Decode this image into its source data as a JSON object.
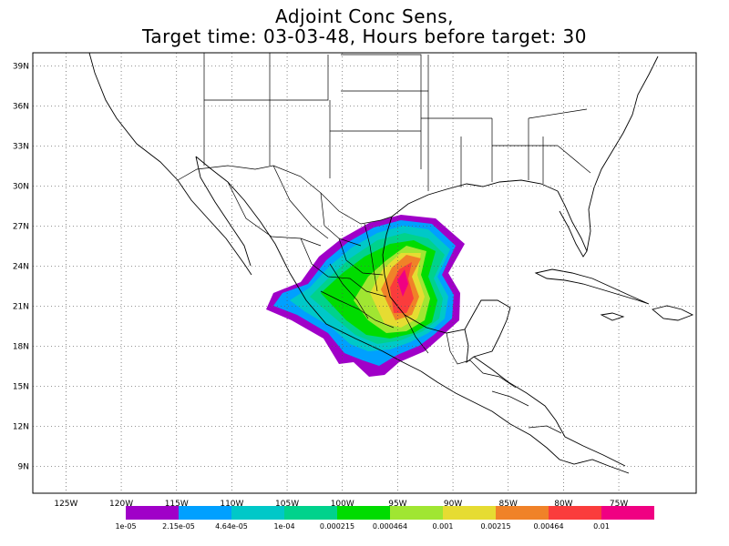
{
  "title": {
    "line1": "Adjoint Conc Sens,",
    "line2": "Target time: 03-03-48, Hours before target: 30"
  },
  "map": {
    "lon_range": [
      -128,
      -68
    ],
    "lat_range": [
      7,
      40
    ],
    "lat_ticks": [
      {
        "value": 39,
        "label": "39N"
      },
      {
        "value": 36,
        "label": "36N"
      },
      {
        "value": 33,
        "label": "33N"
      },
      {
        "value": 30,
        "label": "30N"
      },
      {
        "value": 27,
        "label": "27N"
      },
      {
        "value": 24,
        "label": "24N"
      },
      {
        "value": 21,
        "label": "21N"
      },
      {
        "value": 18,
        "label": "18N"
      },
      {
        "value": 15,
        "label": "15N"
      },
      {
        "value": 12,
        "label": "12N"
      },
      {
        "value": 9,
        "label": "9N"
      }
    ],
    "lon_ticks": [
      {
        "value": -125,
        "label": "125W"
      },
      {
        "value": -120,
        "label": "120W"
      },
      {
        "value": -115,
        "label": "115W"
      },
      {
        "value": -110,
        "label": "110W"
      },
      {
        "value": -105,
        "label": "105W"
      },
      {
        "value": -100,
        "label": "100W"
      },
      {
        "value": -95,
        "label": "95W"
      },
      {
        "value": -90,
        "label": "90W"
      },
      {
        "value": -85,
        "label": "85W"
      },
      {
        "value": -80,
        "label": "80W"
      },
      {
        "value": -75,
        "label": "75W"
      }
    ],
    "grid": "dotted"
  },
  "colorbar": {
    "colors": [
      "#a000c8",
      "#00a0ff",
      "#00c8c8",
      "#00d28c",
      "#00dc00",
      "#a0e632",
      "#e6dc32",
      "#f08228",
      "#fa3c3c",
      "#f00082"
    ],
    "labels": [
      "1e-05",
      "2.15e-05",
      "4.64e-05",
      "1e-04",
      "0.000215",
      "0.000464",
      "0.001",
      "0.00215",
      "0.00464",
      "0.01"
    ]
  }
}
